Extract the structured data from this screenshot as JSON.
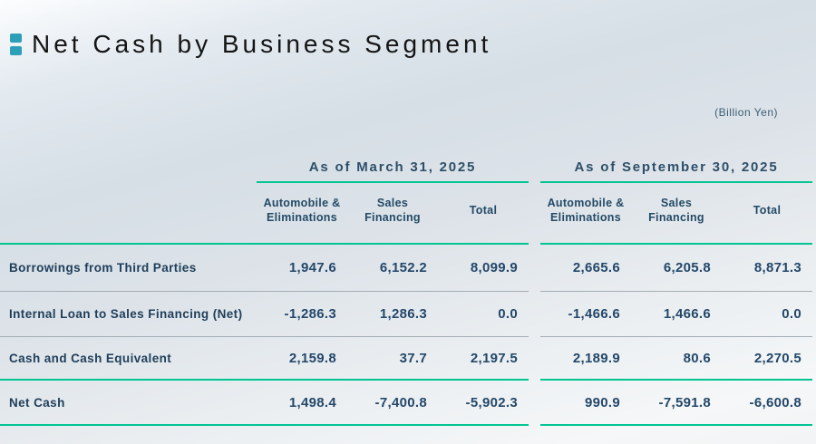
{
  "title": "Net Cash by Business Segment",
  "unit_note": "(Billion Yen)",
  "colors": {
    "accent_teal_line": "#00c592",
    "title_bullet": "#2d9fb8",
    "text_navy": "#24486a",
    "separator_gray": "#a4aeb5"
  },
  "table": {
    "groups": [
      {
        "date_header": "As of March 31, 2025",
        "columns": [
          {
            "line1": "Automobile &",
            "line2": "Eliminations"
          },
          {
            "line1": "Sales",
            "line2": "Financing"
          },
          {
            "line1": "Total",
            "line2": ""
          }
        ]
      },
      {
        "date_header": "As of September 30, 2025",
        "columns": [
          {
            "line1": "Automobile &",
            "line2": "Eliminations"
          },
          {
            "line1": "Sales",
            "line2": "Financing"
          },
          {
            "line1": "Total",
            "line2": ""
          }
        ]
      }
    ],
    "rows": [
      {
        "label": "Borrowings from Third Parties",
        "values": [
          "1,947.6",
          "6,152.2",
          "8,099.9",
          "2,665.6",
          "6,205.8",
          "8,871.3"
        ]
      },
      {
        "label": "Internal Loan to Sales Financing (Net)",
        "values": [
          "-1,286.3",
          "1,286.3",
          "0.0",
          "-1,466.6",
          "1,466.6",
          "0.0"
        ]
      },
      {
        "label": "Cash and Cash Equivalent",
        "values": [
          "2,159.8",
          "37.7",
          "2,197.5",
          "2,189.9",
          "80.6",
          "2,270.5"
        ]
      },
      {
        "label": "Net Cash",
        "values": [
          "1,498.4",
          "-7,400.8",
          "-5,902.3",
          "990.9",
          "-7,591.8",
          "-6,600.8"
        ]
      }
    ]
  },
  "chart_data": {
    "type": "table",
    "title": "Net Cash by Business Segment",
    "unit": "Billion Yen",
    "column_groups": [
      "As of March 31, 2025",
      "As of September 30, 2025"
    ],
    "columns": [
      "Automobile & Eliminations",
      "Sales Financing",
      "Total",
      "Automobile & Eliminations",
      "Sales Financing",
      "Total"
    ],
    "rows": [
      {
        "label": "Borrowings from Third Parties",
        "values": [
          1947.6,
          6152.2,
          8099.9,
          2665.6,
          6205.8,
          8871.3
        ]
      },
      {
        "label": "Internal Loan to Sales Financing (Net)",
        "values": [
          -1286.3,
          1286.3,
          0.0,
          -1466.6,
          1466.6,
          0.0
        ]
      },
      {
        "label": "Cash and Cash Equivalent",
        "values": [
          2159.8,
          37.7,
          2197.5,
          2189.9,
          80.6,
          2270.5
        ]
      },
      {
        "label": "Net Cash",
        "values": [
          1498.4,
          -7400.8,
          -5902.3,
          990.9,
          -7591.8,
          -6600.8
        ]
      }
    ]
  }
}
